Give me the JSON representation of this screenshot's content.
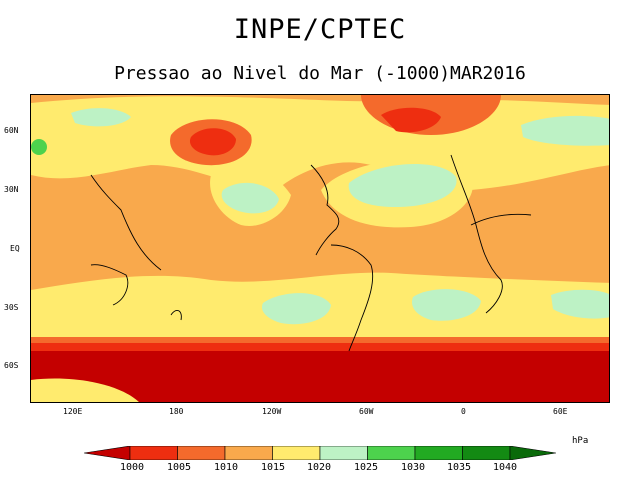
{
  "header": {
    "title": "INPE/CPTEC",
    "subtitle": "Pressao ao Nivel do Mar (-1000)MAR2016"
  },
  "map": {
    "lat_labels": [
      "60N",
      "30N",
      "EQ",
      "30S",
      "60S"
    ],
    "lon_labels": [
      "120E",
      "180",
      "120W",
      "60W",
      "0",
      "60E"
    ],
    "fill_colors": {
      "below_1000": "#c40000",
      "1000_1005": "#ee2e10",
      "1005_1010": "#f46a2c",
      "1010_1015": "#f9a94c",
      "1015_1020": "#ffeb6e",
      "1020_1025": "#bdf2c5",
      "1025_1030": "#4dd24d",
      "1030_1035": "#22aa22",
      "1035_1040": "#138a13",
      "above_1040": "#0a6a0a"
    }
  },
  "colorbar": {
    "unit": "hPa",
    "labels": [
      "1000",
      "1005",
      "1010",
      "1015",
      "1020",
      "1025",
      "1030",
      "1035",
      "1040"
    ],
    "colors": [
      "#c40000",
      "#ee2e10",
      "#f46a2c",
      "#f9a94c",
      "#ffeb6e",
      "#bdf2c5",
      "#4dd24d",
      "#22aa22",
      "#138a13",
      "#0a6a0a"
    ]
  }
}
